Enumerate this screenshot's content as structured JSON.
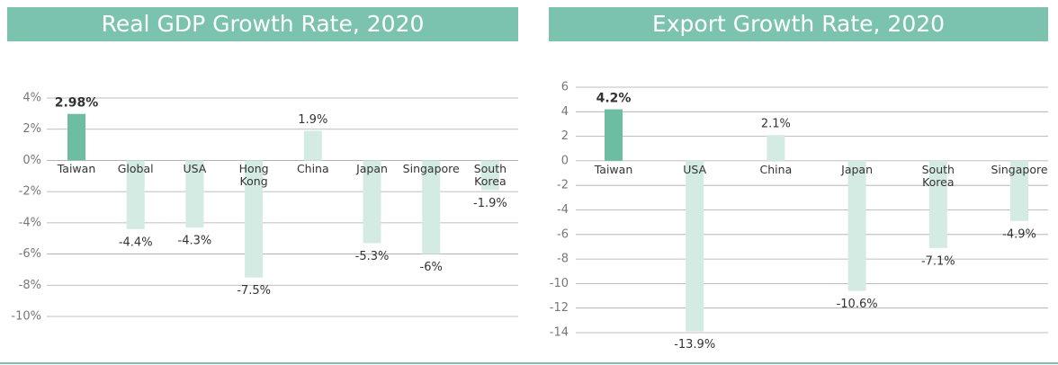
{
  "chart_data": [
    {
      "type": "bar",
      "title": "Real GDP Growth Rate, 2020",
      "categories": [
        "Taiwan",
        "Global",
        "USA",
        "Hong Kong",
        "China",
        "Japan",
        "Singapore",
        "South Korea"
      ],
      "values": [
        2.98,
        -4.4,
        -4.3,
        -7.5,
        1.9,
        -5.3,
        -6,
        -1.9
      ],
      "value_labels": [
        "2.98%",
        "-4.4%",
        "-4.3%",
        "-7.5%",
        "1.9%",
        "-5.3%",
        "-6%",
        "-1.9%"
      ],
      "colors": [
        "#6dbda3",
        "#d3ebe3",
        "#d3ebe3",
        "#d3ebe3",
        "#d3ebe3",
        "#d3ebe3",
        "#d3ebe3",
        "#d3ebe3"
      ],
      "ylim": [
        -10,
        4
      ],
      "yticks": [
        {
          "value": 4,
          "label": "4%"
        },
        {
          "value": 2,
          "label": "2%"
        },
        {
          "value": 0,
          "label": "0%"
        },
        {
          "value": -2,
          "label": "-2%"
        },
        {
          "value": -4,
          "label": "-4%"
        },
        {
          "value": -6,
          "label": "-6%"
        },
        {
          "value": -8,
          "label": "-8%"
        },
        {
          "value": -10,
          "label": "-10%"
        }
      ],
      "grid": true
    },
    {
      "type": "bar",
      "title": "Export Growth Rate, 2020",
      "categories": [
        "Taiwan",
        "USA",
        "China",
        "Japan",
        "South Korea",
        "Singapore"
      ],
      "values": [
        4.2,
        -13.9,
        2.1,
        -10.6,
        -7.1,
        -4.9
      ],
      "value_labels": [
        "4.2%",
        "-13.9%",
        "2.1%",
        "-10.6%",
        "-7.1%",
        "-4.9%"
      ],
      "colors": [
        "#6dbda3",
        "#d3ebe3",
        "#d3ebe3",
        "#d3ebe3",
        "#d3ebe3",
        "#d3ebe3"
      ],
      "ylim": [
        -14,
        6
      ],
      "yticks": [
        6,
        4,
        2,
        0,
        -2,
        -4,
        -6,
        -8,
        -10,
        -12,
        -14
      ],
      "grid": true
    }
  ]
}
